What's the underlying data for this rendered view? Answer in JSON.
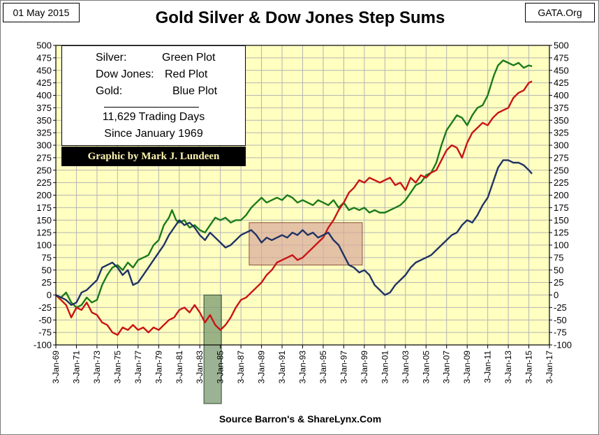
{
  "header": {
    "date": "01 May 2015",
    "source_badge": "GATA.Org",
    "title": "Gold Silver & Dow Jones Step Sums"
  },
  "footer": "Source Barron's & ShareLynx.Com",
  "legend": {
    "silver_label": "Silver:",
    "silver_value": "Green Plot",
    "dow_label": "Dow Jones:",
    "dow_value": "Red Plot",
    "gold_label": "Gold:",
    "gold_value": "Blue Plot",
    "line1": "11,629 Trading Days",
    "line2": "Since January 1969"
  },
  "credit": "Graphic by Mark J. Lundeen",
  "colors": {
    "plot_bg": "#ffffc0",
    "grid": "#b4b4b4",
    "silver": "#1a7a1a",
    "dow": "#c81414",
    "gold": "#1e3264",
    "shade_1985": "#7a9a70",
    "shade_1988_1998": "#d9a89a"
  },
  "chart_data": {
    "type": "line",
    "title": "Gold Silver & Dow Jones Step Sums",
    "xlabel": "",
    "ylabel": "",
    "ylim": [
      -100,
      500
    ],
    "yticks": [
      -100,
      -75,
      -50,
      -25,
      0,
      25,
      50,
      75,
      100,
      125,
      150,
      175,
      200,
      225,
      250,
      275,
      300,
      325,
      350,
      375,
      400,
      425,
      450,
      475,
      500
    ],
    "xlim": [
      1969,
      2017
    ],
    "xticks": [
      "3-Jan-69",
      "3-Jan-71",
      "3-Jan-73",
      "3-Jan-75",
      "3-Jan-77",
      "3-Jan-79",
      "3-Jan-81",
      "3-Jan-83",
      "3-Jan-85",
      "3-Jan-87",
      "3-Jan-89",
      "3-Jan-91",
      "3-Jan-93",
      "3-Jan-95",
      "3-Jan-97",
      "3-Jan-99",
      "3-Jan-01",
      "3-Jan-03",
      "3-Jan-05",
      "3-Jan-07",
      "3-Jan-09",
      "3-Jan-11",
      "3-Jan-13",
      "3-Jan-15",
      "3-Jan-17"
    ],
    "grid": true,
    "shaded_regions": [
      {
        "x": [
          1983.4,
          1985.1
        ],
        "y": [
          -100,
          0
        ]
      },
      {
        "x": [
          1987.8,
          1998.8
        ],
        "y": [
          60,
          145
        ]
      }
    ],
    "series": [
      {
        "name": "Silver",
        "color": "#1a7a1a",
        "x": [
          1969,
          1969.5,
          1970,
          1970.5,
          1971,
          1971.5,
          1972,
          1972.5,
          1973,
          1973.5,
          1974,
          1974.5,
          1975,
          1975.5,
          1976,
          1976.5,
          1977,
          1977.5,
          1978,
          1978.5,
          1979,
          1979.5,
          1980,
          1980.3,
          1980.7,
          1981,
          1981.5,
          1982,
          1982.5,
          1983,
          1983.5,
          1984,
          1984.5,
          1985,
          1985.5,
          1986,
          1986.5,
          1987,
          1987.5,
          1988,
          1988.5,
          1989,
          1989.5,
          1990,
          1990.5,
          1991,
          1991.5,
          1992,
          1992.5,
          1993,
          1993.5,
          1994,
          1994.5,
          1995,
          1995.5,
          1996,
          1996.5,
          1997,
          1997.5,
          1998,
          1998.5,
          1999,
          1999.5,
          2000,
          2000.5,
          2001,
          2001.5,
          2002,
          2002.5,
          2003,
          2003.5,
          2004,
          2004.5,
          2005,
          2005.5,
          2006,
          2006.5,
          2007,
          2007.5,
          2008,
          2008.5,
          2009,
          2009.5,
          2010,
          2010.5,
          2011,
          2011.3,
          2011.6,
          2012,
          2012.5,
          2013,
          2013.5,
          2014,
          2014.5,
          2015,
          2015.3
        ],
        "values": [
          0,
          -5,
          5,
          -15,
          -25,
          -20,
          -5,
          -15,
          -10,
          20,
          40,
          55,
          60,
          50,
          65,
          55,
          70,
          75,
          80,
          100,
          110,
          140,
          155,
          170,
          150,
          145,
          150,
          135,
          140,
          130,
          125,
          140,
          155,
          150,
          155,
          145,
          150,
          150,
          160,
          175,
          185,
          195,
          185,
          190,
          195,
          190,
          200,
          195,
          185,
          190,
          185,
          180,
          190,
          185,
          180,
          190,
          175,
          185,
          170,
          175,
          170,
          175,
          165,
          170,
          165,
          165,
          170,
          175,
          180,
          190,
          205,
          220,
          225,
          240,
          245,
          265,
          300,
          330,
          345,
          360,
          355,
          340,
          360,
          375,
          380,
          400,
          420,
          440,
          460,
          470,
          465,
          460,
          465,
          455,
          460,
          458
        ]
      },
      {
        "name": "Dow Jones",
        "color": "#c81414",
        "x": [
          1969,
          1969.5,
          1970,
          1970.5,
          1971,
          1971.5,
          1972,
          1972.5,
          1973,
          1973.5,
          1974,
          1974.5,
          1975,
          1975.5,
          1976,
          1976.5,
          1977,
          1977.5,
          1978,
          1978.5,
          1979,
          1979.5,
          1980,
          1980.5,
          1981,
          1981.5,
          1982,
          1982.5,
          1983,
          1983.5,
          1984,
          1984.5,
          1985,
          1985.5,
          1986,
          1986.5,
          1987,
          1987.5,
          1988,
          1988.5,
          1989,
          1989.5,
          1990,
          1990.5,
          1991,
          1991.5,
          1992,
          1992.5,
          1993,
          1993.5,
          1994,
          1994.5,
          1995,
          1995.5,
          1996,
          1996.5,
          1997,
          1997.5,
          1998,
          1998.5,
          1999,
          1999.5,
          2000,
          2000.5,
          2001,
          2001.5,
          2002,
          2002.5,
          2003,
          2003.5,
          2004,
          2004.5,
          2005,
          2005.5,
          2006,
          2006.5,
          2007,
          2007.5,
          2008,
          2008.5,
          2009,
          2009.5,
          2010,
          2010.5,
          2011,
          2011.5,
          2012,
          2012.5,
          2013,
          2013.5,
          2014,
          2014.5,
          2015,
          2015.3
        ],
        "values": [
          0,
          -10,
          -20,
          -45,
          -25,
          -30,
          -15,
          -35,
          -40,
          -55,
          -60,
          -75,
          -80,
          -65,
          -70,
          -60,
          -70,
          -65,
          -75,
          -65,
          -70,
          -60,
          -50,
          -45,
          -30,
          -25,
          -35,
          -20,
          -35,
          -55,
          -40,
          -60,
          -70,
          -60,
          -45,
          -25,
          -10,
          -5,
          5,
          15,
          25,
          40,
          50,
          65,
          70,
          75,
          80,
          70,
          75,
          85,
          95,
          105,
          115,
          135,
          150,
          170,
          185,
          205,
          215,
          230,
          225,
          235,
          230,
          225,
          230,
          235,
          220,
          225,
          210,
          235,
          225,
          240,
          235,
          245,
          250,
          270,
          290,
          300,
          295,
          275,
          305,
          325,
          335,
          345,
          340,
          355,
          365,
          370,
          375,
          395,
          405,
          410,
          425,
          428
        ]
      },
      {
        "name": "Gold",
        "color": "#1e3264",
        "x": [
          1969,
          1969.5,
          1970,
          1970.5,
          1971,
          1971.5,
          1972,
          1972.5,
          1973,
          1973.5,
          1974,
          1974.5,
          1975,
          1975.5,
          1976,
          1976.5,
          1977,
          1977.5,
          1978,
          1978.5,
          1979,
          1979.5,
          1980,
          1980.5,
          1981,
          1981.5,
          1982,
          1982.5,
          1983,
          1983.5,
          1984,
          1984.5,
          1985,
          1985.5,
          1986,
          1986.5,
          1987,
          1987.5,
          1988,
          1988.5,
          1989,
          1989.5,
          1990,
          1990.5,
          1991,
          1991.5,
          1992,
          1992.5,
          1993,
          1993.5,
          1994,
          1994.5,
          1995,
          1995.5,
          1996,
          1996.5,
          1997,
          1997.5,
          1998,
          1998.5,
          1999,
          1999.5,
          2000,
          2000.5,
          2001,
          2001.5,
          2002,
          2002.5,
          2003,
          2003.5,
          2004,
          2004.5,
          2005,
          2005.5,
          2006,
          2006.5,
          2007,
          2007.5,
          2008,
          2008.5,
          2009,
          2009.5,
          2010,
          2010.5,
          2011,
          2011.5,
          2012,
          2012.5,
          2013,
          2013.5,
          2014,
          2014.5,
          2015,
          2015.3
        ],
        "values": [
          0,
          -5,
          -10,
          -20,
          -15,
          5,
          10,
          20,
          30,
          55,
          60,
          65,
          55,
          40,
          50,
          20,
          25,
          40,
          55,
          70,
          85,
          100,
          120,
          135,
          150,
          140,
          145,
          135,
          120,
          110,
          125,
          115,
          105,
          95,
          100,
          110,
          120,
          125,
          130,
          120,
          105,
          115,
          110,
          115,
          120,
          115,
          125,
          120,
          130,
          120,
          125,
          115,
          120,
          125,
          110,
          100,
          80,
          60,
          55,
          45,
          50,
          40,
          20,
          10,
          0,
          5,
          20,
          30,
          40,
          55,
          65,
          70,
          75,
          80,
          90,
          100,
          110,
          120,
          125,
          140,
          150,
          145,
          160,
          180,
          195,
          225,
          255,
          270,
          270,
          265,
          265,
          260,
          250,
          243
        ]
      }
    ]
  }
}
